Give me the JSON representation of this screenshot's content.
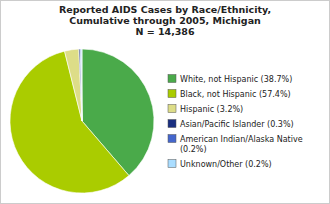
{
  "chart_data": {
    "type": "pie",
    "title": "Reported AIDS Cases by Race/Ethnicity,\nCumulative through 2005, Michigan\nN = 14,386",
    "categories": [
      "White, not Hispanic (38.7%)",
      "Black, not Hispanic (57.4%)",
      "Hispanic (3.2%)",
      "Asian/Pacific Islander (0.3%)",
      "American Indian/Alaska Native\n(0.2%)",
      "Unknown/Other (0.2%)"
    ],
    "values": [
      38.7,
      57.4,
      3.2,
      0.3,
      0.2,
      0.2
    ],
    "colors": [
      "#4aaa4a",
      "#aacc00",
      "#dddd88",
      "#1a2f80",
      "#4466cc",
      "#aaddff"
    ],
    "legend": "right"
  }
}
